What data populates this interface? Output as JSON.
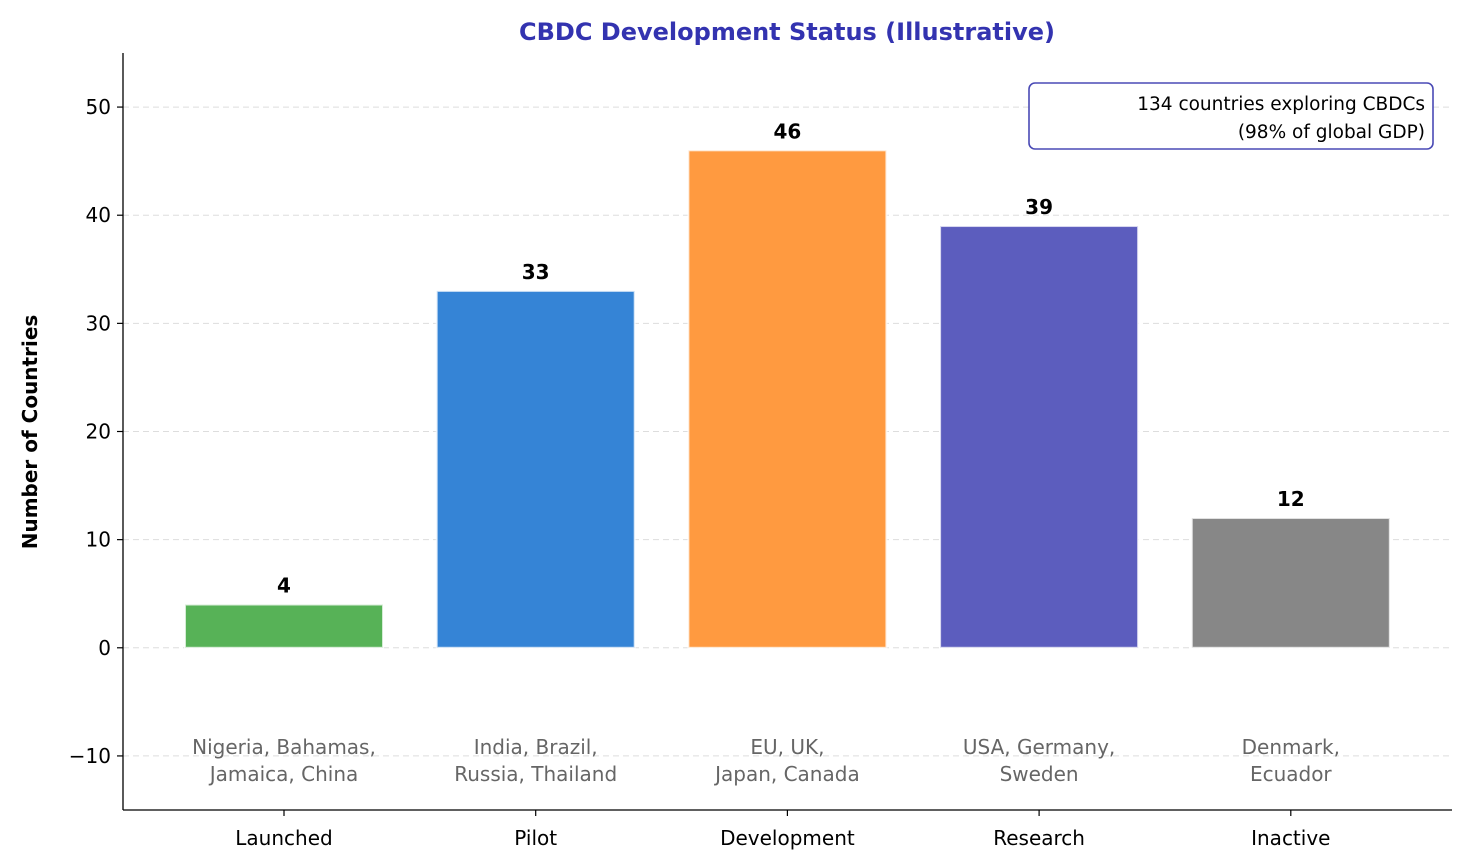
{
  "chart_data": {
    "type": "bar",
    "title": "CBDC Development Status (Illustrative)",
    "xlabel": "",
    "ylabel": "Number of Countries",
    "categories": [
      "Launched",
      "Pilot",
      "Development",
      "Research",
      "Inactive"
    ],
    "values": [
      4,
      33,
      46,
      39,
      12
    ],
    "data_labels": [
      "4",
      "33",
      "46",
      "39",
      "12"
    ],
    "colors": [
      "#57b257",
      "#3584d6",
      "#ff9a40",
      "#5c5dbe",
      "#878787"
    ],
    "example_countries": [
      [
        "Nigeria, Bahamas,",
        "Jamaica, China"
      ],
      [
        "India, Brazil,",
        "Russia, Thailand"
      ],
      [
        "EU, UK,",
        "Japan, Canada"
      ],
      [
        "USA, Germany,",
        "Sweden"
      ],
      [
        "Denmark,",
        "Ecuador"
      ]
    ],
    "ylim": [
      -15,
      55
    ],
    "yticks": [
      -10,
      0,
      10,
      20,
      30,
      40,
      50
    ],
    "ytick_labels": [
      "−10",
      "0",
      "10",
      "20",
      "30",
      "40",
      "50"
    ],
    "grid": "horizontal dashed",
    "annotation": [
      "134 countries exploring CBDCs",
      "(98% of global GDP)"
    ],
    "annotation_placement": "top-right",
    "title_color": "#3333b0",
    "annotation_border_color": "#4a4ab5"
  }
}
